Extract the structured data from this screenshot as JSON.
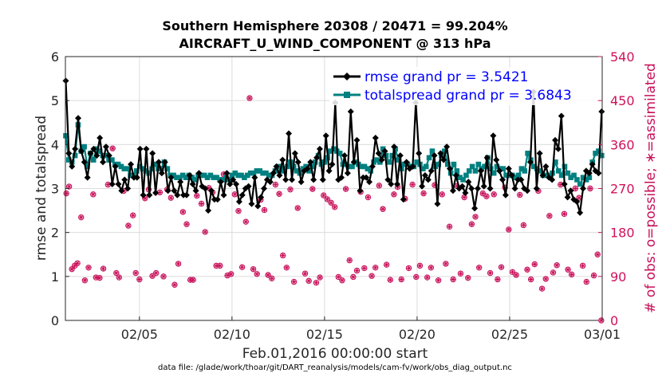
{
  "title_line1": "Southern Hemisphere 20308 / 20471 = 99.204%",
  "title_line2": "AIRCRAFT_U_WIND_COMPONENT @ 313 hPa",
  "ylabel_left": "rmse and totalspread",
  "ylabel_right": "# of obs: o=possible; ∗=assimilated",
  "xlabel": "Feb.01,2016 00:00:00 start",
  "footnote": "data file: /glade/work/thoar/git/DART_reanalysis/models/cam-fv/work/obs_diag_output.nc",
  "colors": {
    "rmse": "#000000",
    "spread": "#008080",
    "obs": "#c8105a",
    "legend_text": "#0000ff",
    "grid": "#dcdcdc"
  },
  "chart_data": {
    "type": "line",
    "x_unit": "days since Feb.01,2016 00:00:00",
    "xlim": [
      0.25,
      29.25
    ],
    "ylim": [
      0,
      6
    ],
    "y2lim": [
      0,
      540
    ],
    "grid": true,
    "legend_location": "top-right",
    "x_ticks": [
      {
        "value": 4.25,
        "label": "02/05"
      },
      {
        "value": 9.25,
        "label": "02/10"
      },
      {
        "value": 14.25,
        "label": "02/15"
      },
      {
        "value": 19.25,
        "label": "02/20"
      },
      {
        "value": 24.25,
        "label": "02/25"
      },
      {
        "value": 29.25,
        "label": "03/01"
      }
    ],
    "y_ticks": [
      "0",
      "1",
      "2",
      "3",
      "4",
      "5",
      "6"
    ],
    "y2_ticks": [
      "0",
      "90",
      "180",
      "270",
      "360",
      "450",
      "540"
    ],
    "series": [
      {
        "name": "rmse grand pr = 3.5421",
        "values": [
          5.45,
          3.8,
          3.5,
          3.9,
          4.6,
          3.85,
          3.6,
          3.25,
          3.8,
          3.9,
          3.75,
          4.15,
          3.6,
          3.95,
          3.75,
          3.1,
          3.5,
          3.1,
          2.95,
          3.2,
          3.0,
          3.55,
          3.25,
          3.25,
          3.9,
          2.85,
          3.9,
          2.85,
          3.8,
          2.9,
          3.6,
          3.35,
          3.6,
          2.95,
          3.25,
          2.95,
          2.85,
          3.15,
          2.85,
          2.85,
          3.3,
          3.1,
          2.95,
          3.35,
          3.05,
          3.0,
          2.5,
          2.95,
          2.75,
          2.75,
          3.15,
          2.85,
          3.35,
          3.1,
          3.2,
          3.1,
          2.7,
          2.85,
          3.0,
          3.05,
          2.65,
          3.25,
          2.6,
          2.8,
          3.0,
          3.2,
          3.15,
          3.35,
          3.5,
          3.3,
          3.65,
          3.2,
          4.25,
          3.2,
          3.8,
          3.6,
          3.15,
          3.4,
          3.45,
          3.6,
          3.2,
          3.7,
          3.9,
          3.2,
          4.2,
          3.4,
          3.55,
          4.95,
          3.2,
          3.25,
          3.75,
          3.35,
          4.75,
          3.6,
          4.1,
          2.95,
          3.25,
          3.25,
          3.15,
          3.5,
          4.15,
          3.8,
          3.65,
          3.85,
          3.2,
          3.1,
          3.95,
          3.1,
          3.75,
          2.75,
          3.6,
          3.45,
          3.5,
          4.95,
          3.8,
          3.05,
          3.3,
          3.2,
          3.4,
          3.75,
          2.65,
          3.8,
          3.65,
          3.95,
          3.45,
          2.95,
          3.3,
          3.0,
          3.05,
          2.9,
          3.15,
          3.0,
          2.55,
          3.0,
          3.4,
          3.05,
          3.7,
          3.0,
          4.2,
          3.65,
          3.4,
          3.2,
          2.85,
          3.45,
          3.3,
          3.0,
          3.2,
          3.2,
          3.0,
          2.95,
          3.6,
          5.2,
          3.0,
          3.8,
          3.3,
          3.5,
          3.25,
          3.2,
          4.1,
          3.9,
          4.65,
          3.1,
          2.8,
          2.95,
          2.75,
          2.7,
          2.45,
          3.0,
          3.4,
          3.35,
          3.55,
          3.4,
          3.35,
          4.75
        ]
      },
      {
        "name": "totalspread grand pr = 3.6843",
        "values": [
          4.2,
          3.65,
          3.6,
          3.75,
          4.45,
          3.85,
          3.95,
          3.5,
          3.8,
          3.65,
          3.9,
          3.85,
          3.75,
          3.75,
          3.65,
          3.65,
          3.55,
          3.55,
          3.5,
          3.45,
          3.45,
          3.3,
          3.3,
          3.4,
          3.5,
          3.45,
          3.4,
          3.35,
          3.45,
          3.55,
          3.45,
          3.45,
          3.6,
          3.45,
          3.3,
          3.3,
          3.25,
          3.25,
          3.3,
          3.25,
          3.3,
          3.25,
          3.2,
          3.3,
          3.3,
          3.3,
          3.25,
          3.3,
          3.25,
          3.25,
          3.2,
          3.2,
          3.25,
          3.2,
          3.3,
          3.35,
          3.3,
          3.3,
          3.25,
          3.3,
          3.35,
          3.35,
          3.4,
          3.4,
          3.35,
          3.35,
          3.3,
          3.3,
          3.4,
          3.5,
          3.4,
          3.45,
          3.5,
          3.6,
          3.5,
          3.4,
          3.35,
          3.45,
          3.5,
          3.4,
          3.5,
          3.6,
          3.75,
          3.55,
          3.6,
          3.7,
          3.85,
          3.9,
          3.85,
          3.8,
          3.55,
          3.55,
          3.5,
          3.5,
          3.6,
          3.55,
          3.5,
          3.5,
          3.45,
          3.4,
          3.6,
          3.65,
          3.6,
          3.9,
          3.75,
          3.6,
          3.75,
          3.9,
          3.65,
          3.45,
          3.55,
          3.55,
          3.5,
          3.5,
          3.6,
          3.55,
          3.45,
          3.5,
          3.7,
          3.85,
          3.5,
          3.55,
          3.75,
          3.85,
          3.55,
          3.35,
          3.55,
          3.4,
          3.25,
          3.2,
          3.3,
          3.4,
          3.5,
          3.4,
          3.55,
          3.45,
          3.5,
          3.7,
          3.45,
          3.35,
          3.5,
          3.45,
          3.45,
          3.3,
          3.3,
          3.3,
          3.25,
          3.3,
          3.45,
          3.4,
          3.8,
          3.65,
          3.5,
          3.45,
          3.4,
          3.3,
          3.3,
          3.3,
          3.35,
          3.6,
          3.4,
          3.3,
          3.5,
          3.35,
          3.25,
          3.3,
          3.2,
          3.1,
          3.25,
          3.2,
          3.25,
          3.6,
          3.8,
          3.85,
          3.75
        ]
      }
    ],
    "obs_possible": [
      {
        "x": 0.3,
        "y": 260
      },
      {
        "x": 0.45,
        "y": 274
      },
      {
        "x": 0.6,
        "y": 105
      },
      {
        "x": 0.75,
        "y": 112
      },
      {
        "x": 0.9,
        "y": 117
      },
      {
        "x": 1.1,
        "y": 211
      },
      {
        "x": 1.3,
        "y": 82
      },
      {
        "x": 1.5,
        "y": 108
      },
      {
        "x": 1.75,
        "y": 258
      },
      {
        "x": 1.9,
        "y": 88
      },
      {
        "x": 2.1,
        "y": 87
      },
      {
        "x": 2.3,
        "y": 106
      },
      {
        "x": 2.55,
        "y": 278
      },
      {
        "x": 2.8,
        "y": 352
      },
      {
        "x": 3.0,
        "y": 97
      },
      {
        "x": 3.15,
        "y": 88
      },
      {
        "x": 3.4,
        "y": 265
      },
      {
        "x": 3.65,
        "y": 194
      },
      {
        "x": 3.9,
        "y": 215
      },
      {
        "x": 4.05,
        "y": 97
      },
      {
        "x": 4.25,
        "y": 84
      },
      {
        "x": 4.55,
        "y": 250
      },
      {
        "x": 4.75,
        "y": 268
      },
      {
        "x": 4.95,
        "y": 91
      },
      {
        "x": 5.15,
        "y": 97
      },
      {
        "x": 5.35,
        "y": 262
      },
      {
        "x": 5.55,
        "y": 90
      },
      {
        "x": 5.75,
        "y": 268
      },
      {
        "x": 5.95,
        "y": 251
      },
      {
        "x": 6.15,
        "y": 73
      },
      {
        "x": 6.35,
        "y": 116
      },
      {
        "x": 6.6,
        "y": 222
      },
      {
        "x": 6.8,
        "y": 197
      },
      {
        "x": 7.0,
        "y": 83
      },
      {
        "x": 7.15,
        "y": 83
      },
      {
        "x": 7.35,
        "y": 255
      },
      {
        "x": 7.6,
        "y": 239
      },
      {
        "x": 7.8,
        "y": 181
      },
      {
        "x": 8.0,
        "y": 271
      },
      {
        "x": 8.2,
        "y": 262
      },
      {
        "x": 8.4,
        "y": 112
      },
      {
        "x": 8.6,
        "y": 112
      },
      {
        "x": 8.8,
        "y": 299
      },
      {
        "x": 9.0,
        "y": 92
      },
      {
        "x": 9.2,
        "y": 95
      },
      {
        "x": 9.4,
        "y": 258
      },
      {
        "x": 9.6,
        "y": 224
      },
      {
        "x": 9.8,
        "y": 109
      },
      {
        "x": 10.0,
        "y": 202
      },
      {
        "x": 10.2,
        "y": 455
      },
      {
        "x": 10.4,
        "y": 105
      },
      {
        "x": 10.6,
        "y": 95
      },
      {
        "x": 10.8,
        "y": 247
      },
      {
        "x": 11.0,
        "y": 226
      },
      {
        "x": 11.2,
        "y": 93
      },
      {
        "x": 11.4,
        "y": 86
      },
      {
        "x": 11.6,
        "y": 278
      },
      {
        "x": 11.8,
        "y": 259
      },
      {
        "x": 12.0,
        "y": 133
      },
      {
        "x": 12.2,
        "y": 108
      },
      {
        "x": 12.4,
        "y": 268
      },
      {
        "x": 12.6,
        "y": 79
      },
      {
        "x": 12.8,
        "y": 230
      },
      {
        "x": 13.0,
        "y": 306
      },
      {
        "x": 13.2,
        "y": 96
      },
      {
        "x": 13.4,
        "y": 81
      },
      {
        "x": 13.6,
        "y": 269
      },
      {
        "x": 13.8,
        "y": 77
      },
      {
        "x": 14.0,
        "y": 88
      },
      {
        "x": 14.2,
        "y": 256
      },
      {
        "x": 14.4,
        "y": 248
      },
      {
        "x": 14.6,
        "y": 241
      },
      {
        "x": 14.8,
        "y": 232
      },
      {
        "x": 15.0,
        "y": 89
      },
      {
        "x": 15.2,
        "y": 82
      },
      {
        "x": 15.4,
        "y": 269
      },
      {
        "x": 15.6,
        "y": 123
      },
      {
        "x": 15.8,
        "y": 89
      },
      {
        "x": 16.0,
        "y": 102
      },
      {
        "x": 16.2,
        "y": 263
      },
      {
        "x": 16.4,
        "y": 107
      },
      {
        "x": 16.6,
        "y": 252
      },
      {
        "x": 16.8,
        "y": 91
      },
      {
        "x": 17.0,
        "y": 108
      },
      {
        "x": 17.2,
        "y": 276
      },
      {
        "x": 17.4,
        "y": 228
      },
      {
        "x": 17.6,
        "y": 114
      },
      {
        "x": 17.8,
        "y": 83
      },
      {
        "x": 18.0,
        "y": 258
      },
      {
        "x": 18.2,
        "y": 273
      },
      {
        "x": 18.4,
        "y": 84
      },
      {
        "x": 18.6,
        "y": 249
      },
      {
        "x": 18.8,
        "y": 107
      },
      {
        "x": 19.0,
        "y": 278
      },
      {
        "x": 19.2,
        "y": 89
      },
      {
        "x": 19.4,
        "y": 112
      },
      {
        "x": 19.6,
        "y": 260
      },
      {
        "x": 19.8,
        "y": 88
      },
      {
        "x": 20.0,
        "y": 108
      },
      {
        "x": 20.2,
        "y": 277
      },
      {
        "x": 20.4,
        "y": 82
      },
      {
        "x": 20.6,
        "y": 258
      },
      {
        "x": 20.8,
        "y": 116
      },
      {
        "x": 21.0,
        "y": 192
      },
      {
        "x": 21.2,
        "y": 84
      },
      {
        "x": 21.4,
        "y": 275
      },
      {
        "x": 21.6,
        "y": 96
      },
      {
        "x": 21.8,
        "y": 252
      },
      {
        "x": 22.0,
        "y": 87
      },
      {
        "x": 22.2,
        "y": 197
      },
      {
        "x": 22.4,
        "y": 212
      },
      {
        "x": 22.6,
        "y": 108
      },
      {
        "x": 22.8,
        "y": 260
      },
      {
        "x": 23.0,
        "y": 254
      },
      {
        "x": 23.2,
        "y": 97
      },
      {
        "x": 23.4,
        "y": 258
      },
      {
        "x": 23.6,
        "y": 84
      },
      {
        "x": 23.8,
        "y": 109
      },
      {
        "x": 24.0,
        "y": 272
      },
      {
        "x": 24.2,
        "y": 186
      },
      {
        "x": 24.4,
        "y": 99
      },
      {
        "x": 24.6,
        "y": 93
      },
      {
        "x": 24.8,
        "y": 257
      },
      {
        "x": 25.0,
        "y": 195
      },
      {
        "x": 25.2,
        "y": 104
      },
      {
        "x": 25.4,
        "y": 84
      },
      {
        "x": 25.6,
        "y": 115
      },
      {
        "x": 25.8,
        "y": 265
      },
      {
        "x": 26.0,
        "y": 65
      },
      {
        "x": 26.2,
        "y": 85
      },
      {
        "x": 26.4,
        "y": 214
      },
      {
        "x": 26.6,
        "y": 98
      },
      {
        "x": 26.8,
        "y": 113
      },
      {
        "x": 27.0,
        "y": 278
      },
      {
        "x": 27.2,
        "y": 218
      },
      {
        "x": 27.4,
        "y": 104
      },
      {
        "x": 27.6,
        "y": 94
      },
      {
        "x": 27.8,
        "y": 270
      },
      {
        "x": 28.0,
        "y": 251
      },
      {
        "x": 28.2,
        "y": 112
      },
      {
        "x": 28.4,
        "y": 79
      },
      {
        "x": 28.6,
        "y": 270
      },
      {
        "x": 28.8,
        "y": 92
      },
      {
        "x": 29.0,
        "y": 135
      },
      {
        "x": 29.2,
        "y": 0
      }
    ]
  }
}
